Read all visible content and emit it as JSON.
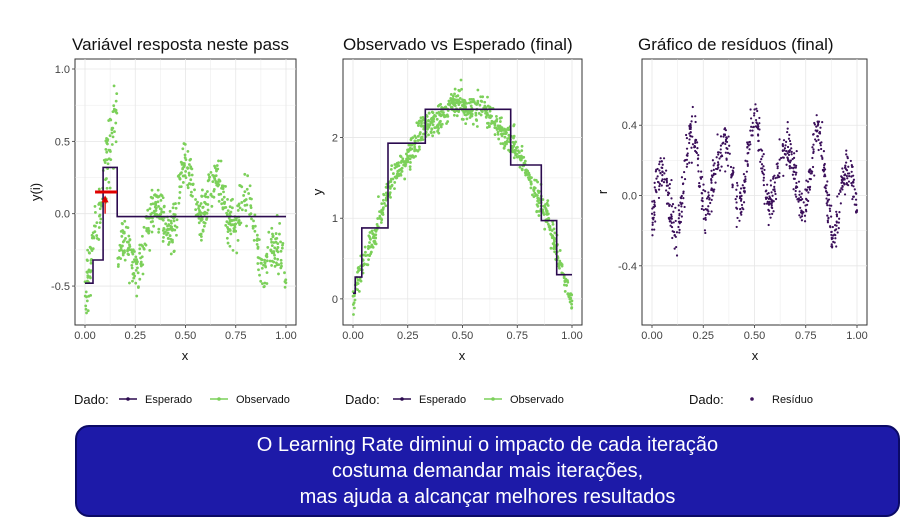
{
  "colors": {
    "expected": "#2b0a4f",
    "observed": "#7cd05a",
    "residual": "#3b0f5a",
    "arrow": "#e00000",
    "panel_bg": "#ffffff",
    "grid": "#e6e6e6",
    "banner_bg": "#1d1aa8",
    "banner_text": "#ffffff"
  },
  "chart_data": [
    {
      "type": "scatter",
      "title": "Variável resposta neste pass",
      "xlabel": "x",
      "ylabel": "y(i)",
      "xlim": [
        0,
        1
      ],
      "ylim": [
        -0.7,
        1.0
      ],
      "x_ticks": [
        0,
        0.25,
        0.5,
        0.75,
        1
      ],
      "x_tick_labels": [
        "0.00",
        "0.25",
        "0.50",
        "0.75",
        "1.00"
      ],
      "y_ticks": [
        -0.5,
        0,
        0.5,
        1
      ],
      "y_tick_labels": [
        "-0.5",
        "0.0",
        "0.5",
        "1.0"
      ],
      "grid": true,
      "series": [
        {
          "name": "Esperado",
          "kind": "step",
          "x": [
            0,
            0.02,
            0.04,
            0.04,
            0.09,
            0.09,
            0.16,
            0.16,
            1.0
          ],
          "y": [
            -0.48,
            -0.48,
            -0.48,
            -0.32,
            -0.32,
            0.32,
            0.32,
            -0.02,
            -0.02
          ]
        },
        {
          "name": "Observado",
          "kind": "points",
          "generator": "residual_sine",
          "n": 700
        }
      ],
      "annotation": {
        "kind": "arrow",
        "segment_x": [
          0.05,
          0.16
        ],
        "segment_y": 0.15,
        "arrow_x": 0.1,
        "arrow_from_y": 0.0,
        "arrow_to_y": 0.12
      },
      "legend": {
        "title": "Dado:",
        "position": "bottom",
        "items": [
          "Esperado",
          "Observado"
        ]
      }
    },
    {
      "type": "scatter",
      "title": "Observado vs Esperado (final)",
      "xlabel": "x",
      "ylabel": "y",
      "xlim": [
        0,
        1
      ],
      "ylim": [
        -0.2,
        2.85
      ],
      "x_ticks": [
        0,
        0.25,
        0.5,
        0.75,
        1
      ],
      "x_tick_labels": [
        "0.00",
        "0.25",
        "0.50",
        "0.75",
        "1.00"
      ],
      "y_ticks": [
        0,
        1,
        2
      ],
      "y_tick_labels": [
        "0",
        "1",
        "2"
      ],
      "grid": true,
      "series": [
        {
          "name": "Esperado",
          "kind": "step",
          "x": [
            0,
            0.01,
            0.01,
            0.04,
            0.04,
            0.16,
            0.16,
            0.33,
            0.33,
            0.72,
            0.72,
            0.86,
            0.86,
            0.93,
            0.93,
            1.0
          ],
          "y": [
            0.07,
            0.07,
            0.27,
            0.27,
            0.88,
            0.88,
            1.93,
            1.93,
            2.35,
            2.35,
            1.66,
            1.66,
            0.97,
            0.97,
            0.3,
            0.3
          ]
        },
        {
          "name": "Observado",
          "kind": "points",
          "generator": "parabola",
          "n": 800
        }
      ],
      "legend": {
        "title": "Dado:",
        "position": "bottom",
        "items": [
          "Esperado",
          "Observado"
        ]
      }
    },
    {
      "type": "scatter",
      "title": "Gráfico de resíduos (final)",
      "xlabel": "x",
      "ylabel": "r",
      "xlim": [
        0,
        1
      ],
      "ylim": [
        -0.68,
        0.72
      ],
      "x_ticks": [
        0,
        0.25,
        0.5,
        0.75,
        1
      ],
      "x_tick_labels": [
        "0.00",
        "0.25",
        "0.50",
        "0.75",
        "1.00"
      ],
      "y_ticks": [
        -0.4,
        0,
        0.4
      ],
      "y_tick_labels": [
        "-0.4",
        "0.0",
        "0.4"
      ],
      "grid": true,
      "series": [
        {
          "name": "Resíduo",
          "kind": "points",
          "generator": "residual_final",
          "n": 800
        }
      ],
      "legend": {
        "title": "Dado:",
        "position": "bottom",
        "items": [
          "Resíduo"
        ]
      }
    }
  ],
  "banner": {
    "line1": "O Learning Rate diminui o impacto de cada iteração",
    "line2": "costuma demandar mais iterações,",
    "line3": "mas ajuda a alcançar melhores resultados"
  }
}
